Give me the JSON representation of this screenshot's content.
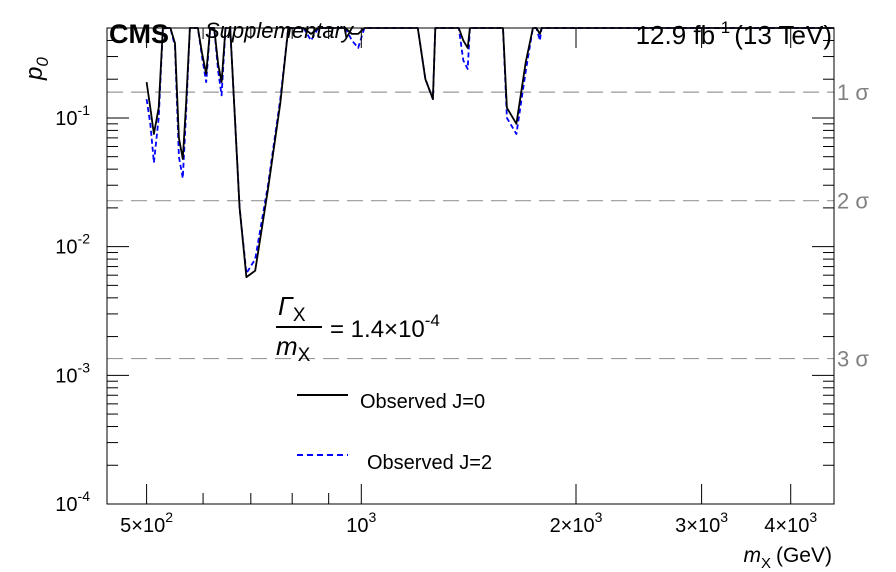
{
  "header": {
    "experiment": "CMS",
    "status": "Supplementary",
    "lumi_value": "12.9 fb",
    "lumi_exp": "-1",
    "energy": "(13 TeV)"
  },
  "annotation": {
    "num_sym": "Γ",
    "num_sub": "X",
    "den_sym": "m",
    "den_sub": "X",
    "value": "= 1.4×10",
    "value_exp": "-4"
  },
  "sigma_labels": [
    {
      "label": "1 σ",
      "p": 0.1587
    },
    {
      "label": "2 σ",
      "p": 0.02275
    },
    {
      "label": "3 σ",
      "p": 0.00135
    }
  ],
  "axes": {
    "ylabel": "p",
    "ylabel_sub": "0",
    "xlabel_sym": "m",
    "xlabel_sub": "X",
    "xlabel_unit": "(GeV)",
    "xlim": [
      440,
      4600
    ],
    "ylim": [
      0.0001,
      0.5
    ],
    "xscale": "log",
    "yscale": "log",
    "xticks": [
      {
        "v": 500,
        "m": "5×10",
        "e": "2"
      },
      {
        "v": 1000,
        "m": "10",
        "e": "3"
      },
      {
        "v": 2000,
        "m": "2×10",
        "e": "3"
      },
      {
        "v": 3000,
        "m": "3×10",
        "e": "3"
      },
      {
        "v": 4000,
        "m": "4×10",
        "e": "3"
      }
    ],
    "yticks": [
      {
        "v": 0.1,
        "m": "10",
        "e": "-1"
      },
      {
        "v": 0.01,
        "m": "10",
        "e": "-2"
      },
      {
        "v": 0.001,
        "m": "10",
        "e": "-3"
      },
      {
        "v": 0.0001,
        "m": "10",
        "e": "-4"
      }
    ]
  },
  "legend": {
    "position": "center-left",
    "entries": [
      {
        "label": "Observed J=0",
        "color": "#000000",
        "style": "solid"
      },
      {
        "label": "Observed J=2",
        "color": "#0000ff",
        "style": "dashed"
      }
    ]
  },
  "chart_data": {
    "type": "line",
    "series": [
      {
        "name": "Observed J=0",
        "color": "#000000",
        "dash": "solid",
        "x": [
          500,
          506,
          512,
          520,
          527,
          532,
          540,
          548,
          555,
          562,
          568,
          575,
          582,
          590,
          598,
          606,
          614,
          622,
          630,
          637,
          645,
          655,
          665,
          675,
          690,
          710,
          740,
          770,
          790,
          800,
          810,
          820,
          830,
          850,
          870,
          885,
          895,
          905,
          915,
          930,
          950,
          970,
          990,
          1010,
          1040,
          1080,
          1120,
          1150,
          1170,
          1185,
          1200,
          1230,
          1260,
          1270,
          1290,
          1310,
          1320,
          1330,
          1340,
          1350,
          1360,
          1370,
          1390,
          1410,
          1420,
          1435,
          1450,
          1470,
          1500,
          1520,
          1540,
          1560,
          1580,
          1600,
          1650,
          1700,
          1740,
          1760,
          1780,
          1790,
          1800,
          1815,
          1830,
          1850,
          1900,
          1950,
          2000,
          2200,
          2600,
          3000,
          3500,
          4000,
          4600
        ],
        "y": [
          0.19,
          0.12,
          0.075,
          0.12,
          0.5,
          0.5,
          0.5,
          0.38,
          0.07,
          0.048,
          0.13,
          0.5,
          0.5,
          0.5,
          0.32,
          0.22,
          0.5,
          0.5,
          0.26,
          0.19,
          0.5,
          0.5,
          0.1,
          0.02,
          0.0058,
          0.0065,
          0.028,
          0.13,
          0.5,
          0.5,
          0.5,
          0.5,
          0.5,
          0.45,
          0.5,
          0.5,
          0.5,
          0.5,
          0.5,
          0.5,
          0.5,
          0.45,
          0.45,
          0.5,
          0.5,
          0.5,
          0.5,
          0.5,
          0.5,
          0.5,
          0.5,
          0.2,
          0.14,
          0.5,
          0.5,
          0.5,
          0.5,
          0.5,
          0.5,
          0.5,
          0.5,
          0.5,
          0.4,
          0.35,
          0.5,
          0.5,
          0.5,
          0.5,
          0.5,
          0.5,
          0.5,
          0.5,
          0.5,
          0.12,
          0.09,
          0.27,
          0.5,
          0.5,
          0.45,
          0.5,
          0.5,
          0.5,
          0.5,
          0.5,
          0.5,
          0.5,
          0.5,
          0.5,
          0.5,
          0.5,
          0.5,
          0.5,
          0.5
        ]
      },
      {
        "name": "Observed J=2",
        "color": "#0000ff",
        "dash": "dashed",
        "x": [
          500,
          506,
          512,
          520,
          527,
          532,
          540,
          548,
          555,
          562,
          568,
          575,
          582,
          590,
          598,
          606,
          614,
          622,
          630,
          637,
          645,
          655,
          665,
          675,
          690,
          710,
          740,
          770,
          790,
          800,
          810,
          820,
          830,
          850,
          870,
          885,
          895,
          905,
          915,
          930,
          950,
          970,
          990,
          1010,
          1040,
          1080,
          1120,
          1150,
          1170,
          1185,
          1200,
          1230,
          1260,
          1270,
          1290,
          1310,
          1320,
          1330,
          1340,
          1350,
          1360,
          1370,
          1390,
          1410,
          1420,
          1435,
          1450,
          1470,
          1500,
          1520,
          1540,
          1560,
          1580,
          1600,
          1650,
          1700,
          1740,
          1760,
          1780,
          1790,
          1800,
          1815,
          1830,
          1850,
          1900,
          1950,
          2000,
          2200,
          2600,
          3000,
          3500,
          4000,
          4600
        ],
        "y": [
          0.14,
          0.09,
          0.045,
          0.1,
          0.5,
          0.5,
          0.5,
          0.36,
          0.05,
          0.034,
          0.11,
          0.5,
          0.5,
          0.5,
          0.3,
          0.19,
          0.5,
          0.5,
          0.23,
          0.15,
          0.5,
          0.5,
          0.1,
          0.02,
          0.0062,
          0.008,
          0.03,
          0.14,
          0.5,
          0.5,
          0.5,
          0.5,
          0.5,
          0.4,
          0.5,
          0.5,
          0.5,
          0.5,
          0.5,
          0.5,
          0.5,
          0.4,
          0.35,
          0.5,
          0.5,
          0.5,
          0.5,
          0.5,
          0.5,
          0.5,
          0.5,
          0.2,
          0.14,
          0.5,
          0.5,
          0.5,
          0.5,
          0.5,
          0.5,
          0.5,
          0.5,
          0.5,
          0.28,
          0.24,
          0.5,
          0.5,
          0.5,
          0.5,
          0.5,
          0.5,
          0.5,
          0.5,
          0.5,
          0.1,
          0.075,
          0.23,
          0.5,
          0.5,
          0.4,
          0.5,
          0.5,
          0.5,
          0.5,
          0.5,
          0.5,
          0.5,
          0.5,
          0.5,
          0.5,
          0.5,
          0.5,
          0.5,
          0.5
        ]
      }
    ],
    "xlabel": "m_X (GeV)",
    "ylabel": "p_0",
    "xlim": [
      440,
      4600
    ],
    "ylim": [
      0.0001,
      0.5
    ],
    "xscale": "log",
    "yscale": "log",
    "grid": false,
    "legend_position": "center-left"
  }
}
